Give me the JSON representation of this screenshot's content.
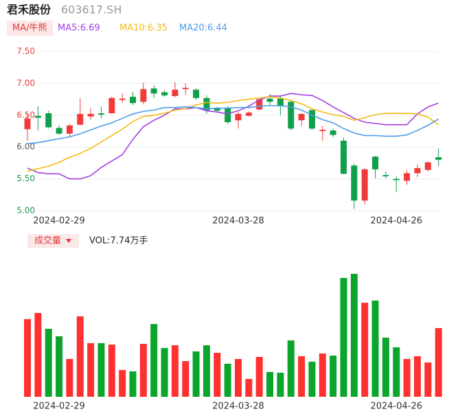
{
  "header": {
    "name": "君禾股份",
    "code": "603617.SH"
  },
  "chart_data": [
    {
      "type": "candlestick",
      "indicator_label": "MA/牛熊",
      "categories": [
        null,
        null,
        null,
        "2024-02-29",
        null,
        null,
        null,
        null,
        null,
        null,
        null,
        null,
        null,
        null,
        null,
        null,
        null,
        null,
        null,
        null,
        "2024-03-28",
        null,
        null,
        null,
        null,
        null,
        null,
        null,
        null,
        null,
        null,
        null,
        null,
        null,
        null,
        "2024-04-26",
        null,
        null,
        null,
        null
      ],
      "open": [
        6.28,
        6.49,
        6.53,
        6.3,
        6.21,
        6.35,
        6.48,
        6.53,
        6.53,
        6.74,
        6.79,
        6.71,
        6.92,
        6.86,
        6.8,
        6.91,
        6.9,
        6.77,
        6.61,
        6.61,
        6.42,
        6.49,
        6.59,
        6.76,
        6.76,
        6.71,
        6.42,
        6.58,
        6.25,
        6.26,
        6.1,
        5.71,
        5.16,
        5.85,
        5.56,
        5.5,
        5.47,
        5.59,
        5.64,
        5.84
      ],
      "high": [
        6.53,
        6.64,
        6.57,
        6.34,
        6.36,
        6.77,
        6.62,
        6.63,
        6.79,
        6.84,
        6.87,
        7.01,
        6.97,
        6.89,
        7.02,
        7.0,
        6.92,
        6.81,
        6.63,
        6.64,
        6.55,
        6.56,
        6.77,
        6.83,
        6.8,
        6.74,
        6.53,
        6.6,
        6.33,
        6.29,
        6.15,
        5.74,
        5.67,
        5.86,
        5.62,
        5.54,
        5.64,
        5.73,
        5.77,
        5.98
      ],
      "low": [
        6.1,
        6.26,
        6.29,
        6.19,
        6.16,
        6.34,
        6.43,
        6.45,
        6.52,
        6.7,
        6.66,
        6.67,
        6.77,
        6.79,
        6.78,
        6.82,
        6.74,
        6.52,
        6.55,
        6.36,
        6.29,
        6.48,
        6.57,
        6.66,
        6.5,
        6.26,
        6.33,
        6.27,
        6.1,
        6.16,
        5.57,
        5.03,
        5.1,
        5.51,
        5.51,
        5.29,
        5.41,
        5.53,
        5.62,
        5.7
      ],
      "close": [
        6.45,
        6.46,
        6.31,
        6.21,
        6.34,
        6.52,
        6.52,
        6.51,
        6.77,
        6.76,
        6.69,
        6.91,
        6.84,
        6.81,
        6.9,
        6.93,
        6.77,
        6.57,
        6.57,
        6.39,
        6.52,
        6.54,
        6.75,
        6.71,
        6.64,
        6.29,
        6.52,
        6.29,
        6.27,
        6.19,
        5.58,
        5.16,
        5.65,
        5.65,
        5.54,
        5.48,
        5.59,
        5.67,
        5.76,
        5.8
      ],
      "up_color": "#f23a3a",
      "down_color": "#10a04a",
      "series": [
        {
          "name": "MA5:6.69",
          "color": "#a23ee0",
          "values": [
            5.67,
            5.6,
            5.58,
            5.58,
            5.5,
            5.5,
            5.55,
            5.68,
            5.78,
            5.88,
            6.12,
            6.32,
            6.42,
            6.5,
            6.6,
            6.6,
            6.62,
            6.57,
            6.55,
            6.52,
            6.57,
            6.64,
            6.74,
            6.8,
            6.8,
            6.84,
            6.82,
            6.81,
            6.73,
            6.63,
            6.54,
            6.45,
            6.39,
            6.37,
            6.35,
            6.35,
            6.35,
            6.52,
            6.63,
            6.69
          ]
        },
        {
          "name": "MA10:6.35",
          "color": "#f5b90f",
          "values": [
            5.62,
            5.66,
            5.7,
            5.76,
            5.84,
            5.9,
            5.98,
            6.08,
            6.18,
            6.28,
            6.4,
            6.48,
            6.5,
            6.53,
            6.58,
            6.6,
            6.66,
            6.7,
            6.69,
            6.7,
            6.73,
            6.75,
            6.77,
            6.79,
            6.77,
            6.73,
            6.68,
            6.6,
            6.55,
            6.51,
            6.48,
            6.42,
            6.46,
            6.51,
            6.53,
            6.53,
            6.53,
            6.52,
            6.47,
            6.35
          ]
        },
        {
          "name": "MA20:6.44",
          "color": "#4b9be8",
          "values": [
            6.05,
            6.07,
            6.1,
            6.13,
            6.16,
            6.21,
            6.27,
            6.33,
            6.38,
            6.45,
            6.52,
            6.56,
            6.58,
            6.62,
            6.62,
            6.63,
            6.62,
            6.6,
            6.61,
            6.61,
            6.62,
            6.62,
            6.64,
            6.65,
            6.65,
            6.63,
            6.58,
            6.5,
            6.43,
            6.38,
            6.29,
            6.22,
            6.18,
            6.18,
            6.17,
            6.17,
            6.19,
            6.26,
            6.34,
            6.44
          ]
        }
      ],
      "ylim": [
        5.0,
        7.5
      ],
      "yticks": [
        {
          "value": 7.5,
          "label": "7.50"
        },
        {
          "value": 7.0,
          "label": "7.00"
        },
        {
          "value": 6.5,
          "label": "6.50"
        },
        {
          "value": 6.0,
          "label": "6.00"
        },
        {
          "value": 5.5,
          "label": "5.50"
        },
        {
          "value": 5.0,
          "label": "5.00"
        }
      ],
      "ytick_colors": [
        "#e33b3b",
        "#e33b3b",
        "#e33b3b",
        "#555555",
        "#1a9a4a",
        "#1a9a4a"
      ],
      "grid": true
    },
    {
      "type": "bar",
      "indicator_label": "成交量",
      "legend": "VOL:7.74万手",
      "categories": [
        null,
        null,
        null,
        "2024-02-29",
        null,
        null,
        null,
        null,
        null,
        null,
        null,
        null,
        null,
        null,
        null,
        null,
        null,
        null,
        null,
        null,
        "2024-03-28",
        null,
        null,
        null,
        null,
        null,
        null,
        null,
        null,
        null,
        null,
        null,
        null,
        null,
        null,
        "2024-04-26",
        null,
        null,
        null,
        null
      ],
      "values": [
        8.75,
        9.44,
        7.66,
        6.81,
        4.26,
        9.06,
        6.04,
        6.04,
        5.88,
        3.02,
        2.86,
        5.96,
        8.2,
        5.5,
        5.8,
        4.02,
        5.11,
        5.8,
        4.95,
        3.72,
        4.26,
        2.01,
        4.49,
        2.79,
        2.71,
        6.35,
        4.57,
        3.95,
        4.88,
        4.64,
        13.39,
        13.85,
        10.6,
        10.84,
        6.66,
        5.57,
        4.26,
        4.57,
        3.87,
        7.74
      ],
      "colors": [
        "#ff3030",
        "#ff3030",
        "#0aa52a",
        "#0aa52a",
        "#ff3030",
        "#ff3030",
        "#ff3030",
        "#0aa52a",
        "#ff3030",
        "#ff3030",
        "#0aa52a",
        "#ff3030",
        "#0aa52a",
        "#0aa52a",
        "#ff3030",
        "#ff3030",
        "#0aa52a",
        "#0aa52a",
        "#ff3030",
        "#0aa52a",
        "#ff3030",
        "#ff3030",
        "#ff3030",
        "#0aa52a",
        "#0aa52a",
        "#0aa52a",
        "#ff3030",
        "#0aa52a",
        "#ff3030",
        "#0aa52a",
        "#0aa52a",
        "#0aa52a",
        "#ff3030",
        "#0aa52a",
        "#0aa52a",
        "#0aa52a",
        "#ff3030",
        "#ff3030",
        "#ff3030",
        "#ff3030"
      ],
      "ylim": [
        0,
        15
      ]
    }
  ]
}
